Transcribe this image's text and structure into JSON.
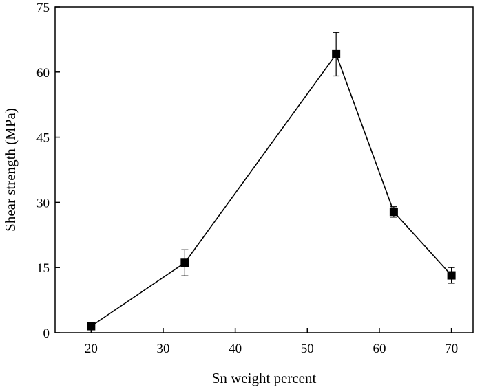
{
  "chart_data": {
    "type": "line",
    "title": "",
    "xlabel": "Sn weight percent",
    "ylabel": "Shear strength (MPa)",
    "xlim": [
      15,
      73
    ],
    "ylim": [
      0,
      75
    ],
    "x_ticks": [
      20,
      30,
      40,
      50,
      60,
      70
    ],
    "y_ticks": [
      0,
      15,
      30,
      45,
      60,
      75
    ],
    "grid": false,
    "legend": "none",
    "marker": "square",
    "color": "#000000",
    "series": [
      {
        "x": [
          20,
          33,
          54,
          62,
          70
        ],
        "values": [
          1.5,
          16.1,
          64.1,
          27.8,
          13.2
        ],
        "error": [
          0,
          3.0,
          5.0,
          1.2,
          1.8
        ]
      }
    ]
  }
}
